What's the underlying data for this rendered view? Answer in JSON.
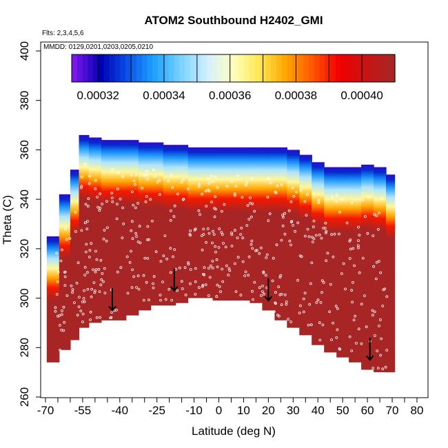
{
  "chart_data": {
    "type": "heatmap",
    "title": "ATOM2 Southbound H2402_GMI",
    "subtitle_flights": "Flts: 2,3,4,5,6",
    "subtitle_dates": "MMDD: 0129,0201,0203,0205,0210",
    "xlabel": "Latitude (deg N)",
    "ylabel": "Theta (C)",
    "xlim": [
      -70,
      80
    ],
    "ylim": [
      260,
      400
    ],
    "x_ticks": [
      -70,
      -55,
      -40,
      -25,
      -10,
      0,
      10,
      20,
      30,
      40,
      50,
      60,
      70,
      80
    ],
    "x_tick_labels": [
      "-70",
      "-55",
      "-40",
      "-25",
      "-10",
      "0",
      "10",
      "20",
      "30",
      "40",
      "50",
      "60",
      "70",
      "80"
    ],
    "x_minor_ticks": [
      -65,
      -60,
      -50,
      -45,
      -35,
      -30,
      -20,
      -15,
      -5,
      5,
      15,
      25,
      35,
      45,
      55,
      65,
      75
    ],
    "y_ticks": [
      260,
      280,
      300,
      320,
      340,
      360,
      380,
      400
    ],
    "y_tick_labels": [
      "260",
      "280",
      "300",
      "320",
      "340",
      "360",
      "380",
      "400"
    ],
    "colorbar": {
      "min": 0.000312,
      "max": 0.00041,
      "ticks": [
        0.00032,
        0.00034,
        0.00036,
        0.00038,
        0.0004
      ],
      "tick_labels": [
        "0.00032",
        "0.00034",
        "0.00036",
        "0.00038",
        "0.00040"
      ],
      "divisions": [
        0.00033,
        0.00035,
        0.00037,
        0.00039
      ]
    },
    "colors": {
      "purple": "#7a18e8",
      "darkblue": "#0000b4",
      "blue": "#0a50e6",
      "skyblue": "#1ea0ff",
      "lightblue": "#78d2ff",
      "paleblue": "#d2f0ff",
      "paleyellow": "#ffffbe",
      "yellow": "#ffe650",
      "orange": "#ffa500",
      "orangered": "#ff5500",
      "red": "#f00000",
      "darkred": "#c81414",
      "brown": "#a82525"
    },
    "domain_outline": [
      [
        -68,
        274
      ],
      [
        -60,
        281
      ],
      [
        -55,
        288
      ],
      [
        -50,
        290
      ],
      [
        -45,
        291
      ],
      [
        -40,
        291
      ],
      [
        -30,
        295
      ],
      [
        -25,
        297
      ],
      [
        -15,
        298
      ],
      [
        -10,
        300
      ],
      [
        -5,
        300
      ],
      [
        0,
        299
      ],
      [
        10,
        299
      ],
      [
        18,
        296
      ],
      [
        22,
        293
      ],
      [
        30,
        288
      ],
      [
        40,
        281
      ],
      [
        50,
        276
      ],
      [
        60,
        271
      ],
      [
        72,
        270
      ],
      [
        72,
        340
      ],
      [
        68,
        352
      ],
      [
        60,
        354
      ],
      [
        45,
        353
      ],
      [
        38,
        355
      ],
      [
        35,
        358
      ],
      [
        30,
        360
      ],
      [
        22,
        361
      ],
      [
        10,
        361
      ],
      [
        -10,
        361
      ],
      [
        -20,
        362
      ],
      [
        -28,
        363
      ],
      [
        -45,
        364
      ],
      [
        -55,
        367
      ],
      [
        -60,
        361
      ],
      [
        -64,
        343
      ],
      [
        -68,
        331
      ],
      [
        -69,
        325
      ],
      [
        -69,
        312
      ]
    ],
    "profiles": [
      {
        "lat": -67,
        "bottom": 274,
        "top": 325
      },
      {
        "lat": -62,
        "bottom": 279,
        "top": 342
      },
      {
        "lat": -58,
        "bottom": 283,
        "top": 352
      },
      {
        "lat": -55,
        "bottom": 288,
        "top": 366
      },
      {
        "lat": -50,
        "bottom": 290,
        "top": 365
      },
      {
        "lat": -45,
        "bottom": 291,
        "top": 364
      },
      {
        "lat": -40,
        "bottom": 291,
        "top": 364
      },
      {
        "lat": -35,
        "bottom": 293,
        "top": 364
      },
      {
        "lat": -30,
        "bottom": 295,
        "top": 363
      },
      {
        "lat": -25,
        "bottom": 297,
        "top": 363
      },
      {
        "lat": -20,
        "bottom": 297,
        "top": 362
      },
      {
        "lat": -15,
        "bottom": 298,
        "top": 362
      },
      {
        "lat": -10,
        "bottom": 300,
        "top": 361
      },
      {
        "lat": -5,
        "bottom": 300,
        "top": 361
      },
      {
        "lat": 0,
        "bottom": 299,
        "top": 361
      },
      {
        "lat": 5,
        "bottom": 299,
        "top": 361
      },
      {
        "lat": 10,
        "bottom": 299,
        "top": 361
      },
      {
        "lat": 15,
        "bottom": 298,
        "top": 361
      },
      {
        "lat": 20,
        "bottom": 295,
        "top": 361
      },
      {
        "lat": 25,
        "bottom": 291,
        "top": 361
      },
      {
        "lat": 30,
        "bottom": 288,
        "top": 360
      },
      {
        "lat": 35,
        "bottom": 285,
        "top": 358
      },
      {
        "lat": 40,
        "bottom": 281,
        "top": 355
      },
      {
        "lat": 45,
        "bottom": 278,
        "top": 353
      },
      {
        "lat": 50,
        "bottom": 276,
        "top": 353
      },
      {
        "lat": 55,
        "bottom": 274,
        "top": 353
      },
      {
        "lat": 60,
        "bottom": 271,
        "top": 354
      },
      {
        "lat": 65,
        "bottom": 270,
        "top": 353
      },
      {
        "lat": 70,
        "bottom": 270,
        "top": 350
      }
    ],
    "arrows": [
      {
        "lat": -43,
        "theta": 295
      },
      {
        "lat": -18,
        "theta": 303
      },
      {
        "lat": 20,
        "theta": 299
      },
      {
        "lat": 61,
        "theta": 275
      }
    ]
  }
}
